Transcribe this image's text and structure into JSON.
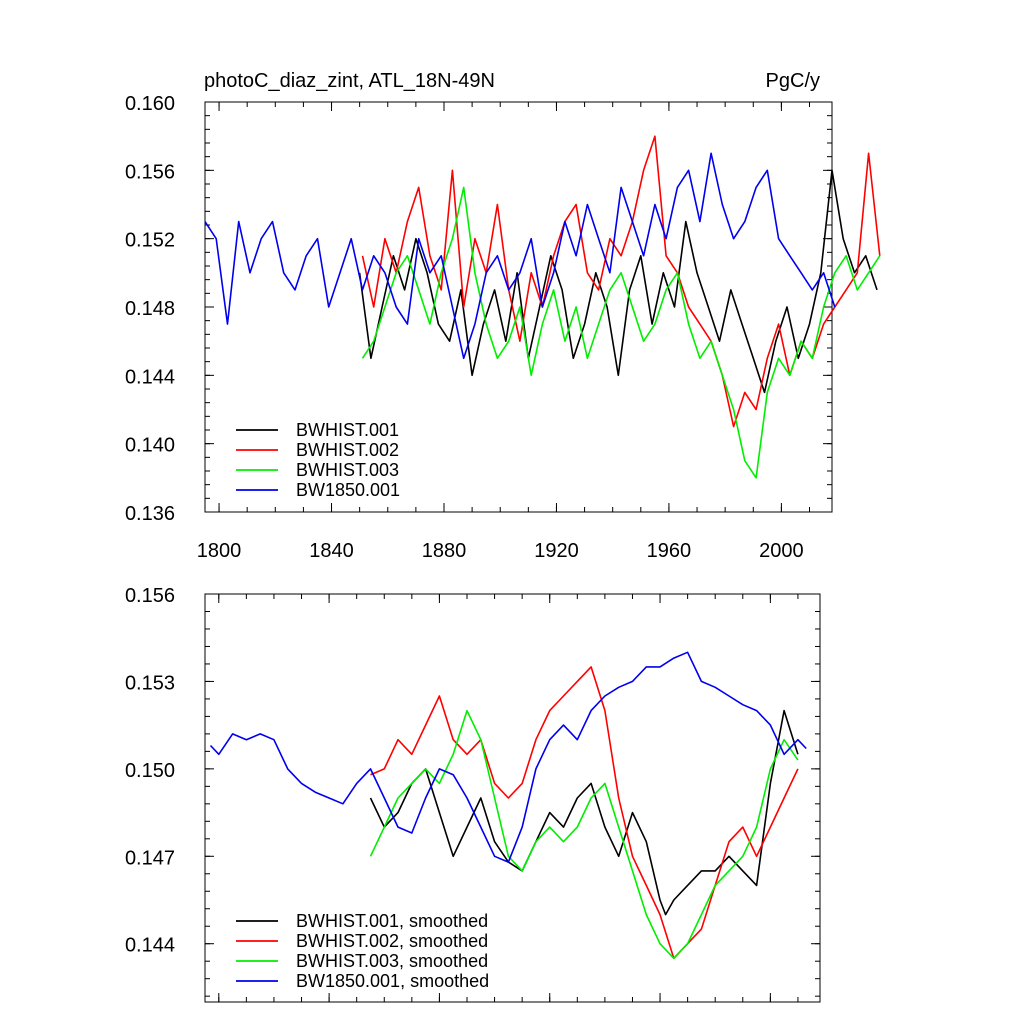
{
  "chart_data": [
    {
      "type": "line",
      "title": "photoC_diaz_zint, ATL_18N-49N",
      "units": "PgC/y",
      "xlim": [
        1795,
        2018
      ],
      "ylim": [
        0.136,
        0.16
      ],
      "x_ticks": [
        1800,
        1840,
        1880,
        1920,
        1960,
        2000
      ],
      "x_tick_labels": [
        "1800",
        "1840",
        "1880",
        "1920",
        "1960",
        "2000"
      ],
      "y_ticks": [
        0.136,
        0.14,
        0.144,
        0.148,
        0.152,
        0.156,
        0.16
      ],
      "y_tick_labels": [
        "0.136",
        "0.140",
        "0.144",
        "0.148",
        "0.152",
        "0.156",
        "0.160"
      ],
      "legend_position": "bottom-left",
      "series": [
        {
          "name": "BWHIST.001",
          "color": "#000000",
          "x_start": 1850,
          "x_step": 4,
          "values": [
            0.15,
            0.145,
            0.148,
            0.151,
            0.149,
            0.152,
            0.15,
            0.147,
            0.146,
            0.149,
            0.144,
            0.147,
            0.149,
            0.146,
            0.15,
            0.145,
            0.148,
            0.151,
            0.149,
            0.145,
            0.147,
            0.15,
            0.148,
            0.144,
            0.149,
            0.151,
            0.147,
            0.15,
            0.148,
            0.153,
            0.15,
            0.148,
            0.146,
            0.149,
            0.147,
            0.145,
            0.143,
            0.146,
            0.148,
            0.145,
            0.147,
            0.15,
            0.156,
            0.152,
            0.15,
            0.151,
            0.149
          ]
        },
        {
          "name": "BWHIST.002",
          "color": "#ff0000",
          "x_start": 1851,
          "x_step": 4,
          "values": [
            0.151,
            0.148,
            0.152,
            0.15,
            0.153,
            0.155,
            0.151,
            0.149,
            0.156,
            0.148,
            0.152,
            0.15,
            0.154,
            0.149,
            0.146,
            0.15,
            0.148,
            0.151,
            0.153,
            0.154,
            0.15,
            0.149,
            0.152,
            0.151,
            0.153,
            0.156,
            0.158,
            0.151,
            0.15,
            0.148,
            0.147,
            0.146,
            0.144,
            0.141,
            0.143,
            0.142,
            0.145,
            0.147,
            0.144,
            0.146,
            0.145,
            0.147,
            0.148,
            0.149,
            0.15,
            0.157,
            0.151
          ]
        },
        {
          "name": "BWHIST.003",
          "color": "#00ee00",
          "x_start": 1851,
          "x_step": 4,
          "values": [
            0.145,
            0.146,
            0.148,
            0.15,
            0.151,
            0.149,
            0.147,
            0.15,
            0.152,
            0.155,
            0.15,
            0.147,
            0.145,
            0.146,
            0.148,
            0.144,
            0.147,
            0.149,
            0.146,
            0.148,
            0.145,
            0.147,
            0.149,
            0.15,
            0.148,
            0.146,
            0.147,
            0.149,
            0.15,
            0.147,
            0.145,
            0.146,
            0.144,
            0.142,
            0.139,
            0.138,
            0.143,
            0.145,
            0.144,
            0.146,
            0.145,
            0.148,
            0.15,
            0.151,
            0.149,
            0.15,
            0.151
          ]
        },
        {
          "name": "BW1850.001",
          "color": "#0000ee",
          "x_start": 1795,
          "x_step": 4,
          "values": [
            0.153,
            0.152,
            0.147,
            0.153,
            0.15,
            0.152,
            0.153,
            0.15,
            0.149,
            0.151,
            0.152,
            0.148,
            0.15,
            0.152,
            0.149,
            0.151,
            0.15,
            0.148,
            0.147,
            0.152,
            0.15,
            0.151,
            0.148,
            0.145,
            0.147,
            0.15,
            0.151,
            0.149,
            0.15,
            0.152,
            0.148,
            0.15,
            0.153,
            0.151,
            0.154,
            0.152,
            0.15,
            0.155,
            0.153,
            0.151,
            0.154,
            0.152,
            0.155,
            0.156,
            0.153,
            0.157,
            0.154,
            0.152,
            0.153,
            0.155,
            0.156,
            0.152,
            0.151,
            0.15,
            0.149,
            0.15,
            0.148
          ]
        }
      ]
    },
    {
      "type": "line",
      "xlim": [
        1795,
        2018
      ],
      "ylim": [
        0.142,
        0.156
      ],
      "y_ticks": [
        0.144,
        0.147,
        0.15,
        0.153,
        0.156
      ],
      "y_tick_labels": [
        "0.144",
        "0.147",
        "0.150",
        "0.153",
        "0.156"
      ],
      "x_ticks": [
        1800,
        1840,
        1880,
        1920,
        1960,
        2000
      ],
      "legend_position": "bottom-left",
      "series": [
        {
          "name": "BWHIST.001, smoothed",
          "color": "#000000",
          "x": [
            1855,
            1860,
            1865,
            1870,
            1875,
            1880,
            1885,
            1890,
            1895,
            1900,
            1905,
            1910,
            1915,
            1920,
            1925,
            1930,
            1935,
            1940,
            1945,
            1950,
            1955,
            1960,
            1962,
            1965,
            1970,
            1975,
            1980,
            1985,
            1990,
            1995,
            2000,
            2005,
            2010
          ],
          "y": [
            0.149,
            0.148,
            0.1485,
            0.1495,
            0.15,
            0.1485,
            0.147,
            0.148,
            0.149,
            0.1475,
            0.1468,
            0.1465,
            0.1475,
            0.1485,
            0.148,
            0.149,
            0.1495,
            0.148,
            0.147,
            0.1485,
            0.1475,
            0.1455,
            0.145,
            0.1455,
            0.146,
            0.1465,
            0.1465,
            0.147,
            0.1465,
            0.146,
            0.1495,
            0.152,
            0.1505
          ]
        },
        {
          "name": "BWHIST.002, smoothed",
          "color": "#ff0000",
          "x": [
            1855,
            1860,
            1865,
            1870,
            1875,
            1880,
            1885,
            1890,
            1895,
            1900,
            1905,
            1910,
            1915,
            1920,
            1925,
            1930,
            1935,
            1940,
            1945,
            1950,
            1955,
            1960,
            1965,
            1970,
            1975,
            1980,
            1985,
            1990,
            1995,
            2000,
            2005,
            2010
          ],
          "y": [
            0.1498,
            0.15,
            0.151,
            0.1505,
            0.1515,
            0.1525,
            0.151,
            0.1505,
            0.151,
            0.1495,
            0.149,
            0.1495,
            0.151,
            0.152,
            0.1525,
            0.153,
            0.1535,
            0.152,
            0.149,
            0.147,
            0.146,
            0.145,
            0.1435,
            0.144,
            0.1445,
            0.146,
            0.1475,
            0.148,
            0.147,
            0.148,
            0.149,
            0.15
          ]
        },
        {
          "name": "BWHIST.003, smoothed",
          "color": "#00ee00",
          "x": [
            1855,
            1860,
            1865,
            1870,
            1875,
            1880,
            1885,
            1890,
            1895,
            1900,
            1905,
            1910,
            1915,
            1920,
            1925,
            1930,
            1935,
            1940,
            1945,
            1950,
            1955,
            1960,
            1965,
            1970,
            1975,
            1980,
            1985,
            1990,
            1995,
            2000,
            2005,
            2010
          ],
          "y": [
            0.147,
            0.148,
            0.149,
            0.1495,
            0.15,
            0.1495,
            0.1505,
            0.152,
            0.151,
            0.149,
            0.147,
            0.1465,
            0.1475,
            0.148,
            0.1475,
            0.148,
            0.149,
            0.1495,
            0.148,
            0.1465,
            0.145,
            0.144,
            0.1435,
            0.144,
            0.145,
            0.146,
            0.1465,
            0.147,
            0.148,
            0.15,
            0.151,
            0.1503
          ]
        },
        {
          "name": "BW1850.001, smoothed",
          "color": "#0000ee",
          "x": [
            1797,
            1800,
            1805,
            1810,
            1815,
            1820,
            1825,
            1830,
            1835,
            1840,
            1845,
            1850,
            1855,
            1860,
            1865,
            1870,
            1875,
            1880,
            1885,
            1890,
            1895,
            1900,
            1905,
            1910,
            1915,
            1920,
            1925,
            1930,
            1935,
            1940,
            1945,
            1950,
            1955,
            1960,
            1965,
            1970,
            1975,
            1980,
            1985,
            1990,
            1995,
            2000,
            2005,
            2010,
            2013
          ],
          "y": [
            0.1508,
            0.1505,
            0.1512,
            0.151,
            0.1512,
            0.151,
            0.15,
            0.1495,
            0.1492,
            0.149,
            0.1488,
            0.1495,
            0.15,
            0.149,
            0.148,
            0.1478,
            0.149,
            0.15,
            0.1498,
            0.149,
            0.148,
            0.147,
            0.1468,
            0.148,
            0.15,
            0.151,
            0.1515,
            0.151,
            0.152,
            0.1525,
            0.1528,
            0.153,
            0.1535,
            0.1535,
            0.1538,
            0.154,
            0.153,
            0.1528,
            0.1525,
            0.1522,
            0.152,
            0.1515,
            0.1505,
            0.151,
            0.1507
          ]
        }
      ]
    }
  ]
}
